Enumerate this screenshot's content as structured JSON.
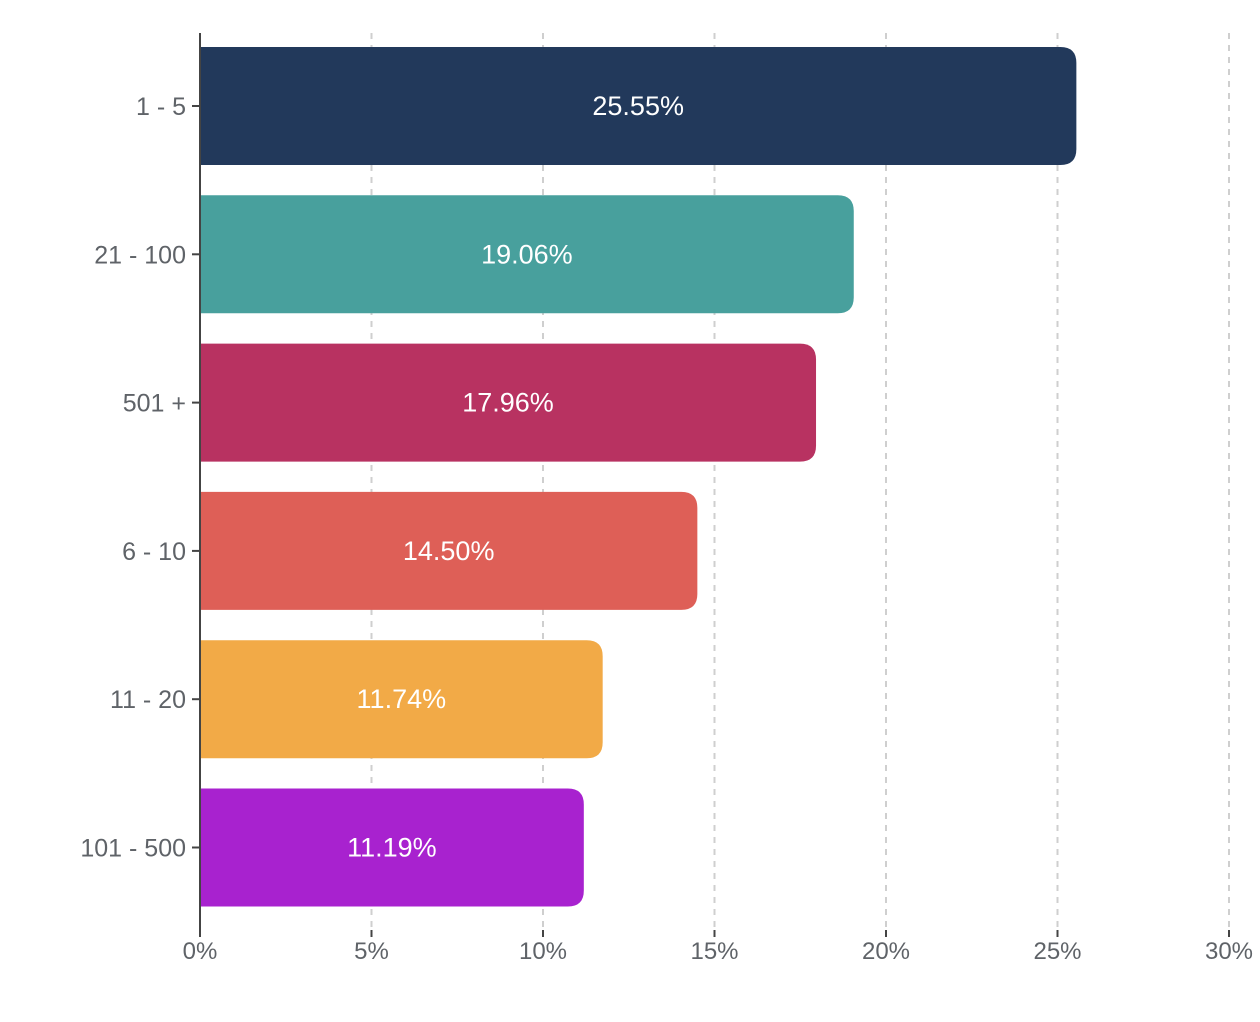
{
  "chart_data": {
    "type": "bar",
    "orientation": "horizontal",
    "categories": [
      "1 - 5",
      "21 - 100",
      "501 +",
      "6 - 10",
      "11 - 20",
      "101 - 500"
    ],
    "values": [
      25.55,
      19.06,
      17.96,
      14.5,
      11.74,
      11.19
    ],
    "value_labels": [
      "25.55%",
      "19.06%",
      "17.96%",
      "14.50%",
      "11.74%",
      "11.19%"
    ],
    "colors": [
      "#22395b",
      "#48a09d",
      "#b83261",
      "#de5f57",
      "#f2aa47",
      "#a822cf"
    ],
    "xlim": [
      0,
      30
    ],
    "xticks": [
      0,
      5,
      10,
      15,
      20,
      25,
      30
    ],
    "xtick_labels": [
      "0%",
      "5%",
      "10%",
      "15%",
      "20%",
      "25%",
      "30%"
    ],
    "title": "",
    "xlabel": "",
    "ylabel": "",
    "grid": "vertical dashed",
    "legend": "none"
  }
}
